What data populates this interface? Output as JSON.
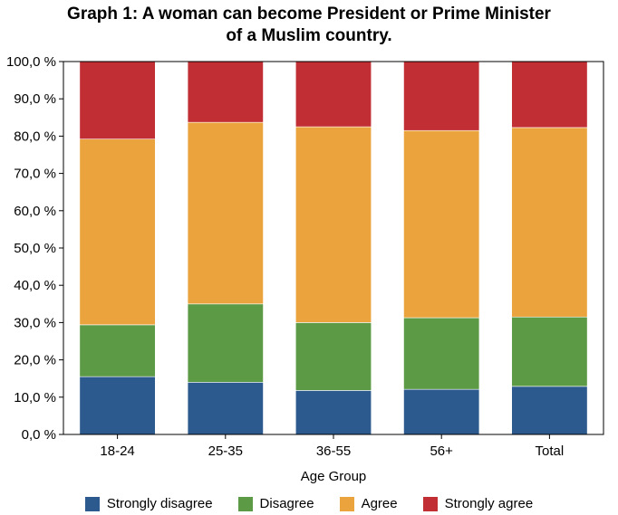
{
  "chart_data": {
    "type": "bar",
    "stacked": true,
    "title_lines": [
      "Graph 1: A woman can become President or Prime Minister",
      "of a Muslim country."
    ],
    "xlabel": "Age Group",
    "ylabel": "",
    "ylim": [
      0,
      100
    ],
    "yticks": [
      "0,0 %",
      "10,0 %",
      "20,0 %",
      "30,0 %",
      "40,0 %",
      "50,0 %",
      "60,0 %",
      "70,0 %",
      "80,0 %",
      "90,0 %",
      "100,0 %"
    ],
    "categories": [
      "18-24",
      "25-35",
      "36-55",
      "56+",
      "Total"
    ],
    "legend_position": "bottom",
    "grid": false,
    "series": [
      {
        "name": "Strongly disagree",
        "color": "#2d5a8e",
        "values": [
          15.5,
          14.0,
          11.8,
          12.1,
          12.9
        ]
      },
      {
        "name": "Disagree",
        "color": "#5c9a45",
        "values": [
          13.9,
          21.0,
          18.2,
          19.2,
          18.6
        ]
      },
      {
        "name": "Agree",
        "color": "#eaa33d",
        "values": [
          49.8,
          48.7,
          52.5,
          50.2,
          50.8
        ]
      },
      {
        "name": "Strongly agree",
        "color": "#c12e34",
        "values": [
          20.8,
          16.3,
          17.5,
          18.5,
          17.7
        ]
      }
    ]
  }
}
